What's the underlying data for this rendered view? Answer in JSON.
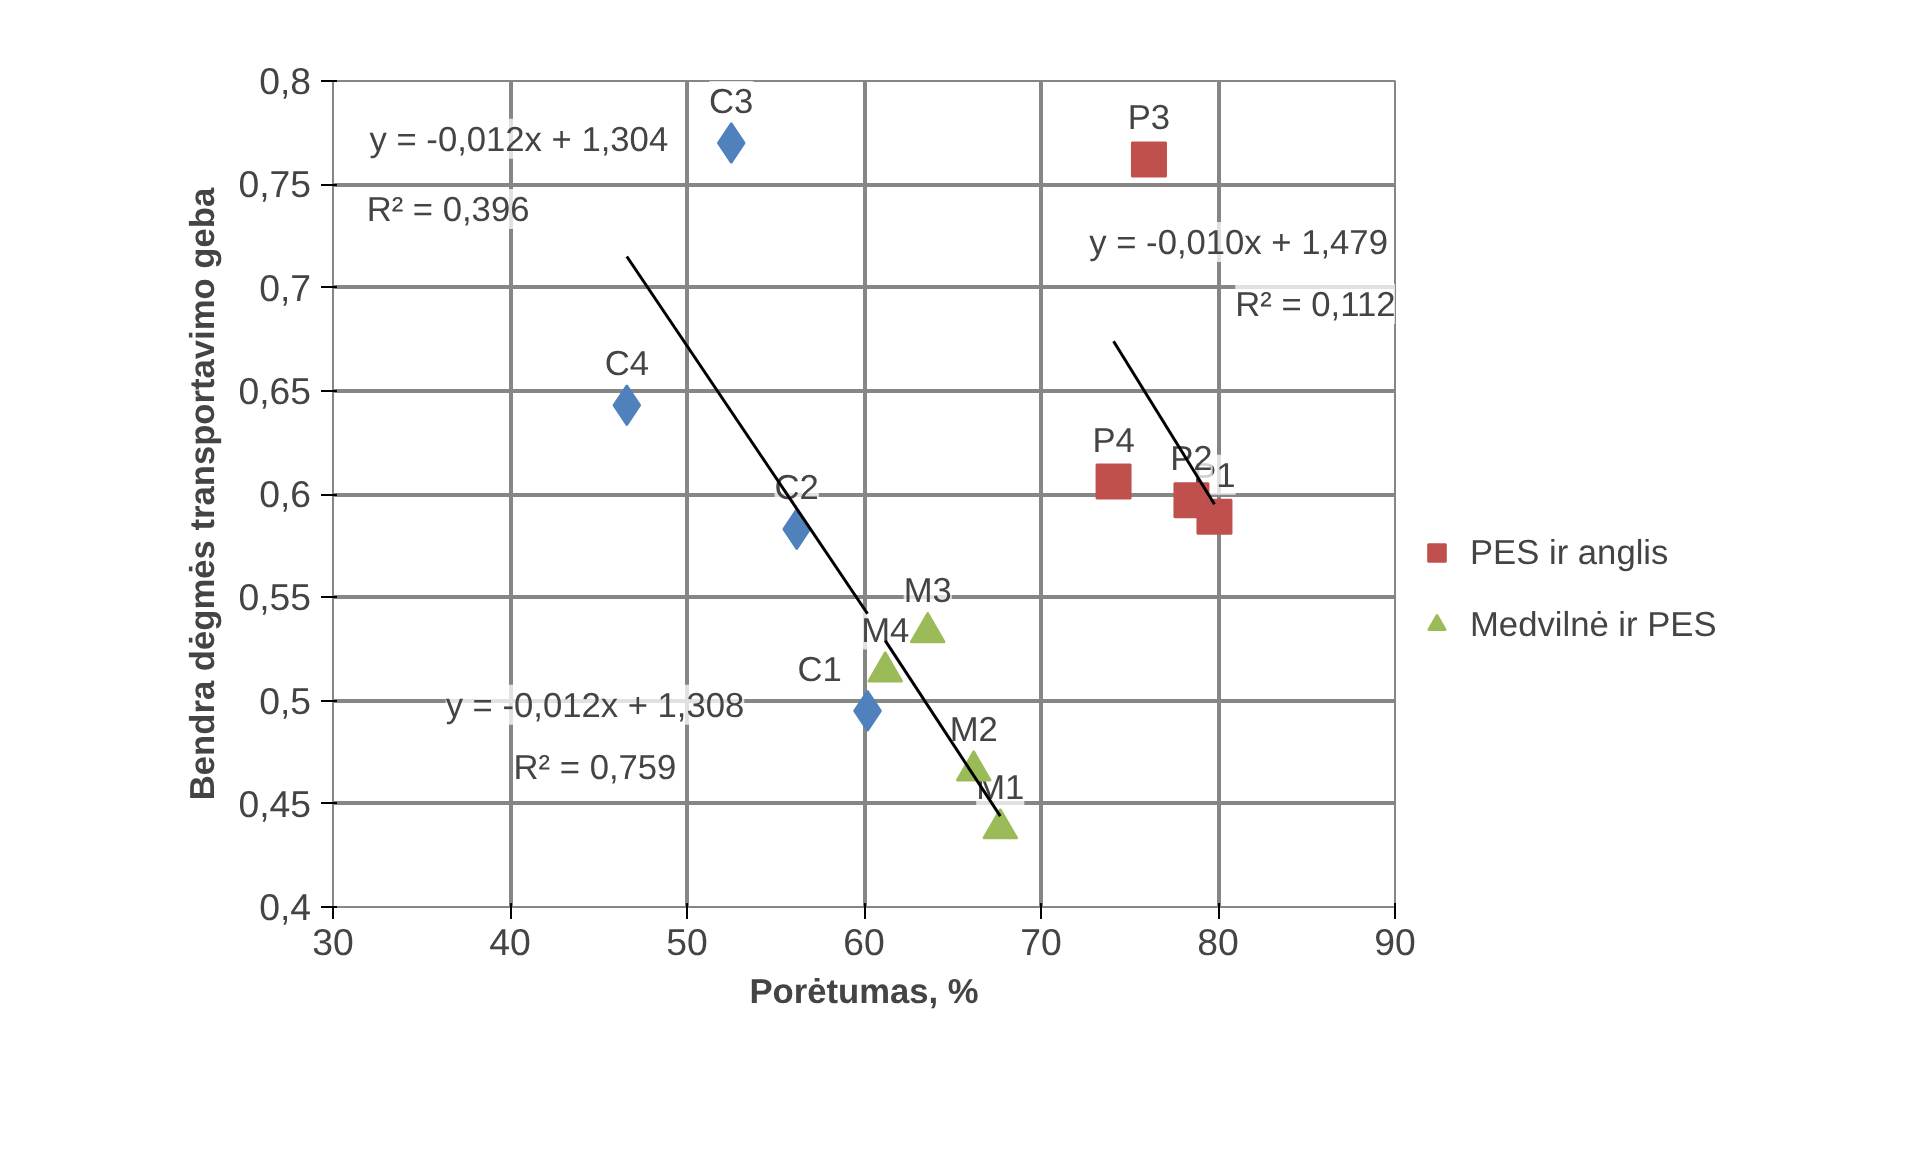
{
  "chart_data": {
    "type": "scatter",
    "xlabel": "Porėtumas, %",
    "ylabel": "Bendra dėgmės transportavimo geba",
    "xlim": [
      30,
      90
    ],
    "ylim": [
      0.4,
      0.8
    ],
    "xticks": [
      30,
      40,
      50,
      60,
      70,
      80,
      90
    ],
    "yticks": [
      {
        "value": 0.4,
        "label": "0,4"
      },
      {
        "value": 0.45,
        "label": "0,45"
      },
      {
        "value": 0.5,
        "label": "0,5"
      },
      {
        "value": 0.55,
        "label": "0,55"
      },
      {
        "value": 0.6,
        "label": "0,6"
      },
      {
        "value": 0.65,
        "label": "0,65"
      },
      {
        "value": 0.7,
        "label": "0,7"
      },
      {
        "value": 0.75,
        "label": "0,75"
      },
      {
        "value": 0.8,
        "label": "0,8"
      }
    ],
    "grid": true,
    "legend": "right",
    "series": [
      {
        "marker": "diamond",
        "color": "#4f81bd",
        "x": [
          60.2,
          56.2,
          52.5,
          46.6
        ],
        "values": [
          0.495,
          0.583,
          0.77,
          0.643
        ]
      },
      {
        "name": "PES ir anglis",
        "marker": "square",
        "color": "#c0504d",
        "x": [
          79.8,
          78.5,
          76.1,
          74.1
        ],
        "values": [
          0.589,
          0.597,
          0.762,
          0.606
        ]
      },
      {
        "name": "Medvilnė ir PES",
        "marker": "triangle",
        "color": "#9bbb59",
        "x": [
          67.7,
          66.2,
          63.6,
          61.2
        ],
        "values": [
          0.438,
          0.466,
          0.533,
          0.514
        ]
      },
      {
        "type": "line",
        "marker": "none",
        "color": "#000000",
        "x": [
          46.6,
          60.2
        ],
        "values": [
          0.715,
          0.542
        ]
      },
      {
        "type": "line",
        "marker": "none",
        "color": "#000000",
        "x": [
          74.1,
          79.8
        ],
        "values": [
          0.674,
          0.595
        ]
      },
      {
        "type": "line",
        "marker": "none",
        "color": "#000000",
        "x": [
          61.2,
          67.7
        ],
        "values": [
          0.529,
          0.444
        ]
      }
    ],
    "annotations": [
      {
        "text": "C1",
        "x": 60.2,
        "y": 0.495
      },
      {
        "text": "C2",
        "x": 56.2,
        "y": 0.583
      },
      {
        "text": "C3",
        "x": 52.5,
        "y": 0.77
      },
      {
        "text": "C4",
        "x": 46.6,
        "y": 0.643
      },
      {
        "text": "P1",
        "x": 79.8,
        "y": 0.589
      },
      {
        "text": "P2",
        "x": 78.5,
        "y": 0.597
      },
      {
        "text": "P3",
        "x": 76.1,
        "y": 0.762
      },
      {
        "text": "P4",
        "x": 74.1,
        "y": 0.606
      },
      {
        "text": "M1",
        "x": 67.7,
        "y": 0.438
      },
      {
        "text": "M2",
        "x": 66.2,
        "y": 0.466
      },
      {
        "text": "M3",
        "x": 63.6,
        "y": 0.533
      },
      {
        "text": "M4",
        "x": 61.2,
        "y": 0.514
      },
      "y = -0,012x + 1,304",
      "R² = 0,396",
      "y = -0,012x + 1,308",
      "R² = 0,759",
      "y = -0,010x + 1,479",
      "R² = 0,112"
    ]
  }
}
